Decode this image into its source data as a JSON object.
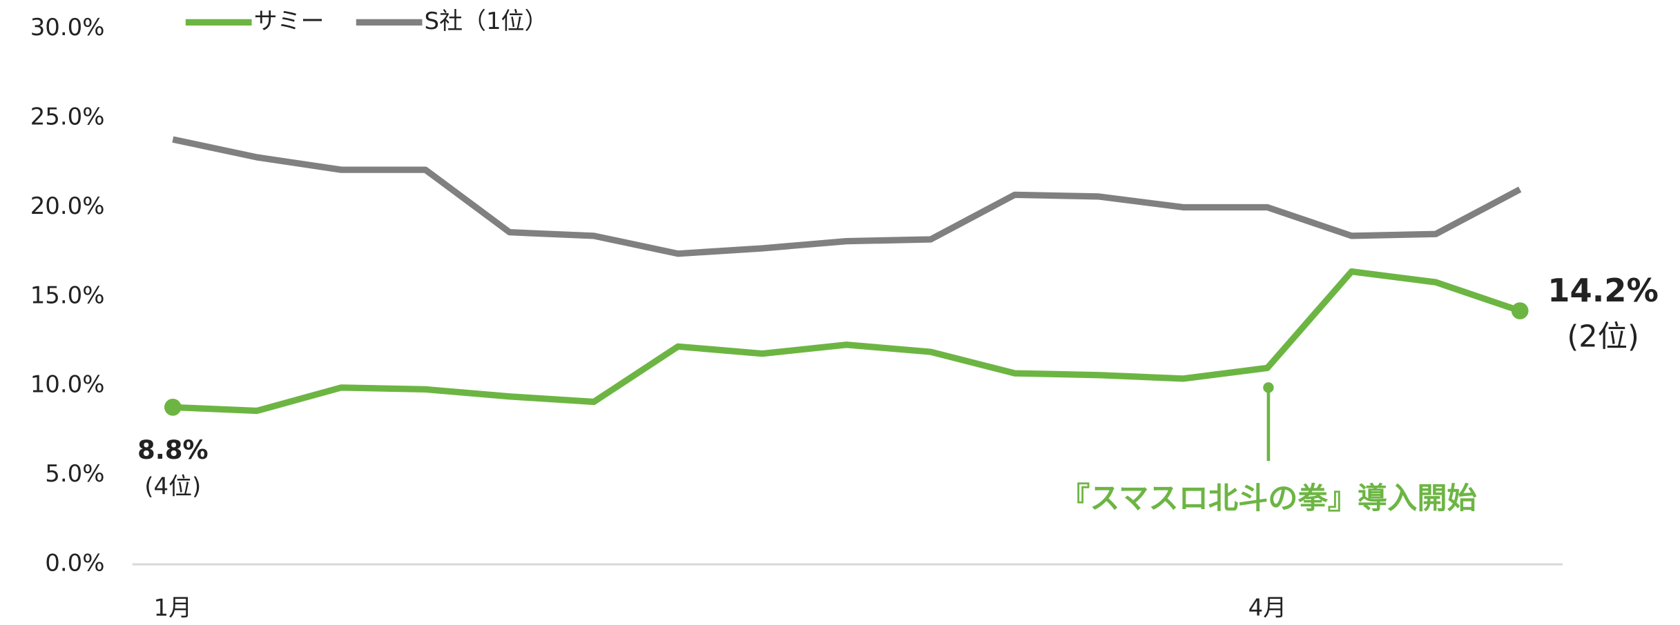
{
  "chart_data": {
    "type": "line",
    "categories": [
      "1月",
      null,
      null,
      null,
      null,
      null,
      null,
      null,
      null,
      null,
      null,
      null,
      null,
      "4月",
      null,
      null,
      null
    ],
    "series": [
      {
        "name": "サミー",
        "color": "#6cb543",
        "values": [
          8.8,
          8.6,
          9.9,
          9.8,
          9.4,
          9.1,
          12.2,
          11.8,
          12.3,
          11.9,
          10.7,
          10.6,
          10.4,
          11.0,
          16.4,
          15.8,
          14.2
        ],
        "value_labels": [
          "8.8%",
          null,
          null,
          null,
          null,
          null,
          null,
          null,
          null,
          null,
          null,
          null,
          null,
          null,
          null,
          null,
          "14.2%"
        ]
      },
      {
        "name": "S社（1位）",
        "color": "#808080",
        "values": [
          23.8,
          22.8,
          22.1,
          22.1,
          18.6,
          18.4,
          17.4,
          17.7,
          18.1,
          18.2,
          20.7,
          20.6,
          20.0,
          20.0,
          18.4,
          18.5,
          21.0
        ]
      }
    ],
    "annotations": [
      "(4位)",
      "(2位)",
      "『スマスロ北斗の拳』導入開始"
    ],
    "ylim": [
      0,
      30
    ],
    "yticks": [
      {
        "value": 0,
        "label": "0.0%"
      },
      {
        "value": 5,
        "label": "5.0%"
      },
      {
        "value": 10,
        "label": "10.0%"
      },
      {
        "value": 15,
        "label": "15.0%"
      },
      {
        "value": 20,
        "label": "20.0%"
      },
      {
        "value": 25,
        "label": "25.0%"
      },
      {
        "value": 30,
        "label": "30.0%"
      }
    ],
    "legend": "top-left"
  }
}
